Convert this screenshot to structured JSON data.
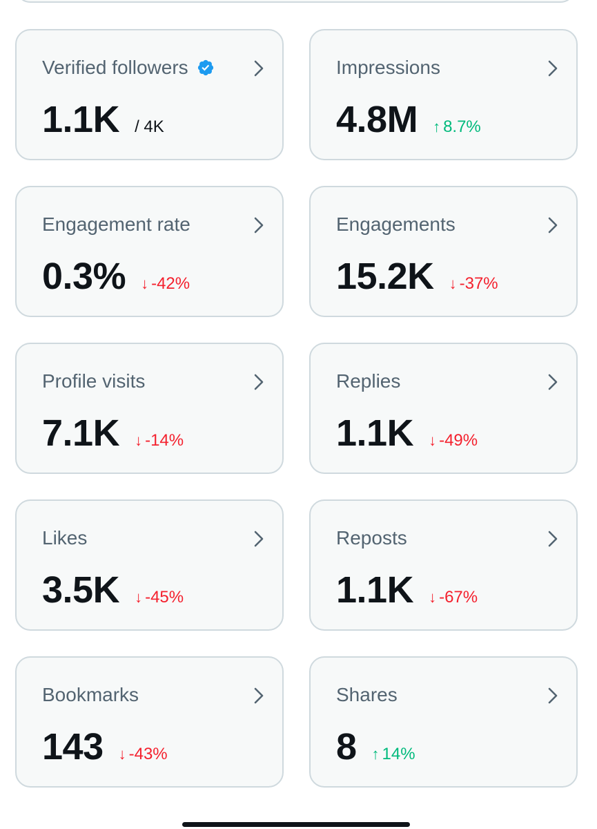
{
  "colors": {
    "card_bg": "#f7f9f9",
    "card_border": "#cfd9de",
    "label": "#536471",
    "value": "#0f1419",
    "negative": "#f4212e",
    "positive": "#00ba7c",
    "verified_badge": "#1d9bf0"
  },
  "cards": [
    {
      "label": "Verified followers",
      "value": "1.1K",
      "sub": "/ 4K",
      "icon": "verified-badge-icon"
    },
    {
      "label": "Impressions",
      "value": "4.8M",
      "change": "8.7%",
      "direction": "up"
    },
    {
      "label": "Engagement rate",
      "value": "0.3%",
      "change": "-42%",
      "direction": "down"
    },
    {
      "label": "Engagements",
      "value": "15.2K",
      "change": "-37%",
      "direction": "down"
    },
    {
      "label": "Profile visits",
      "value": "7.1K",
      "change": "-14%",
      "direction": "down"
    },
    {
      "label": "Replies",
      "value": "1.1K",
      "change": "-49%",
      "direction": "down"
    },
    {
      "label": "Likes",
      "value": "3.5K",
      "change": "-45%",
      "direction": "down"
    },
    {
      "label": "Reposts",
      "value": "1.1K",
      "change": "-67%",
      "direction": "down"
    },
    {
      "label": "Bookmarks",
      "value": "143",
      "change": "-43%",
      "direction": "down"
    },
    {
      "label": "Shares",
      "value": "8",
      "change": "14%",
      "direction": "up"
    }
  ],
  "arrows": {
    "up": "↑",
    "down": "↓"
  }
}
